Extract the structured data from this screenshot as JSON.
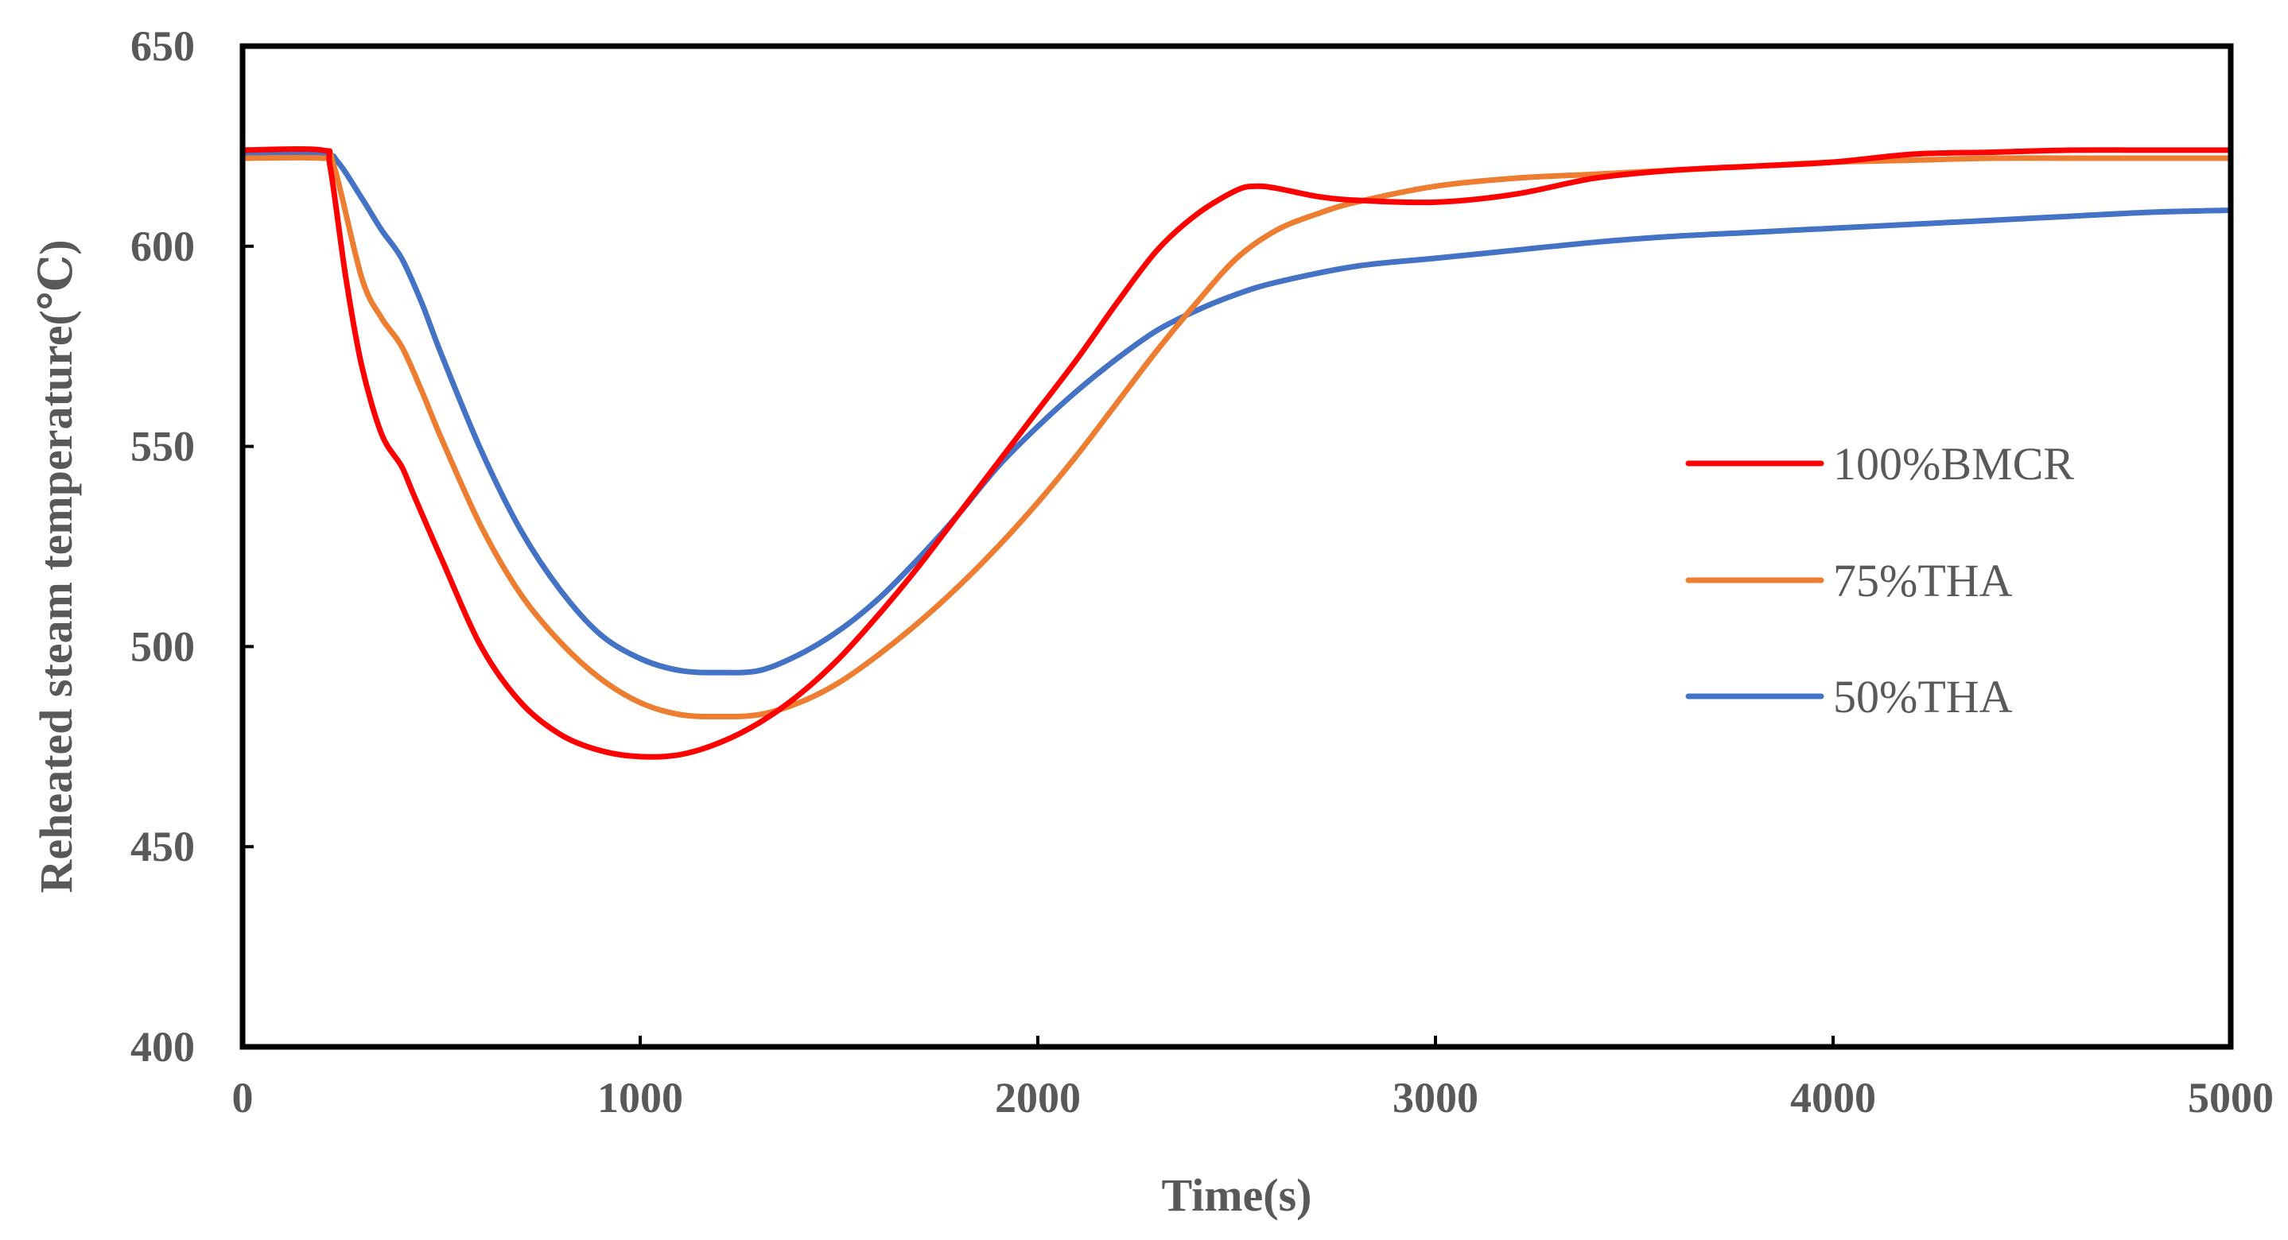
{
  "chart_data": {
    "type": "line",
    "title": "",
    "xlabel": "Time(s)",
    "ylabel": "Reheated steam temperature(℃)",
    "xlim": [
      0,
      5000
    ],
    "ylim": [
      400,
      650
    ],
    "xticks": [
      0,
      1000,
      2000,
      3000,
      4000,
      5000
    ],
    "yticks": [
      400,
      450,
      500,
      550,
      600,
      650
    ],
    "grid": false,
    "legend_position": "right",
    "series": [
      {
        "name": "100%BMCR",
        "color": "#ff0000",
        "x": [
          0,
          200,
          220,
          260,
          300,
          350,
          400,
          430,
          500,
          600,
          700,
          800,
          900,
          1000,
          1100,
          1200,
          1300,
          1400,
          1500,
          1600,
          1700,
          1800,
          1900,
          2000,
          2100,
          2200,
          2300,
          2400,
          2500,
          2550,
          2600,
          2700,
          2800,
          3000,
          3200,
          3400,
          3600,
          3800,
          4000,
          4200,
          4400,
          4600,
          4800,
          5000
        ],
        "y": [
          624,
          624,
          620,
          592,
          570,
          553,
          545,
          538,
          522,
          500,
          486,
          478,
          474,
          472.5,
          473,
          476,
          481,
          488,
          497,
          508,
          520,
          533,
          546,
          559,
          572,
          586,
          599,
          608,
          614,
          615,
          614.5,
          612.5,
          611.5,
          611,
          613,
          617,
          619,
          620,
          621,
          623,
          623.5,
          624,
          624,
          624
        ]
      },
      {
        "name": "75%THA",
        "color": "#ed7d31",
        "x": [
          0,
          200,
          230,
          300,
          350,
          400,
          450,
          500,
          600,
          700,
          800,
          900,
          1000,
          1100,
          1200,
          1300,
          1400,
          1500,
          1600,
          1700,
          1800,
          1900,
          2000,
          2100,
          2200,
          2300,
          2400,
          2500,
          2600,
          2700,
          2800,
          3000,
          3200,
          3400,
          3600,
          3800,
          4000,
          4200,
          4400,
          4600,
          4800,
          5000
        ],
        "y": [
          622,
          622,
          620,
          592,
          582,
          575,
          564,
          552,
          530,
          513,
          501,
          492,
          486,
          483,
          482.5,
          483,
          486,
          491,
          498,
          506,
          515,
          525,
          536,
          548,
          561,
          574,
          586,
          597,
          604,
          608,
          611,
          615,
          617,
          618,
          619,
          620,
          621,
          621.5,
          622,
          622,
          622,
          622
        ]
      },
      {
        "name": "50%THA",
        "color": "#4472c4",
        "x": [
          0,
          200,
          240,
          300,
          350,
          400,
          450,
          500,
          600,
          700,
          800,
          900,
          1000,
          1100,
          1200,
          1300,
          1400,
          1500,
          1600,
          1700,
          1800,
          1900,
          2000,
          2100,
          2200,
          2300,
          2400,
          2500,
          2600,
          2800,
          3000,
          3200,
          3400,
          3600,
          3800,
          4000,
          4200,
          4400,
          4600,
          4800,
          5000
        ],
        "y": [
          623,
          623,
          621,
          612,
          604,
          597,
          586,
          573,
          549,
          529,
          514,
          503,
          497,
          494,
          493.5,
          494,
          498,
          504,
          512,
          522,
          533,
          545,
          555,
          564,
          572,
          579,
          584,
          588,
          591,
          595,
          597,
          599,
          601,
          602.5,
          603.5,
          604.5,
          605.5,
          606.5,
          607.5,
          608.5,
          609
        ]
      }
    ]
  }
}
